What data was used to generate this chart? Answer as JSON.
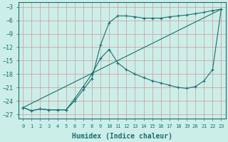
{
  "xlabel": "Humidex (Indice chaleur)",
  "bg_color": "#cceee8",
  "grid_color": "#cc9999",
  "line_color": "#1a6e6e",
  "xlim": [
    -0.5,
    23.5
  ],
  "ylim": [
    -28,
    -2
  ],
  "yticks": [
    -3,
    -6,
    -9,
    -12,
    -15,
    -18,
    -21,
    -24,
    -27
  ],
  "xticks": [
    0,
    1,
    2,
    3,
    4,
    5,
    6,
    7,
    8,
    9,
    10,
    11,
    12,
    13,
    14,
    15,
    16,
    17,
    18,
    19,
    20,
    21,
    22,
    23
  ],
  "line1_x": [
    0,
    1,
    2,
    3,
    4,
    5,
    6,
    7,
    8,
    9,
    10,
    11,
    12,
    13,
    14,
    15,
    16,
    17,
    18,
    19,
    20,
    21,
    22,
    23
  ],
  "line1_y": [
    -25.5,
    -26.2,
    -25.8,
    -26.0,
    -26.0,
    -26.0,
    -24.0,
    -21.5,
    -19.0,
    -11.5,
    -6.5,
    -5.0,
    -5.0,
    -5.2,
    -5.5,
    -5.5,
    -5.5,
    -5.2,
    -5.0,
    -4.8,
    -4.5,
    -4.2,
    -3.8,
    -3.5
  ],
  "line2_x": [
    0,
    1,
    2,
    3,
    4,
    5,
    6,
    7,
    8,
    9,
    10,
    11,
    12,
    13,
    14,
    15,
    16,
    17,
    18,
    19,
    20,
    21,
    22,
    23
  ],
  "line2_y": [
    -25.5,
    -26.2,
    -25.8,
    -26.0,
    -26.0,
    -26.0,
    -23.5,
    -20.8,
    -18.0,
    -14.5,
    -12.5,
    -15.5,
    -17.0,
    -18.0,
    -18.8,
    -19.5,
    -20.0,
    -20.5,
    -21.0,
    -21.2,
    -20.8,
    -19.5,
    -17.0,
    -3.5
  ],
  "line3_x": [
    0,
    23
  ],
  "line3_y": [
    -25.5,
    -3.5
  ],
  "xlabel_fontsize": 7,
  "tick_fontsize": 5.5
}
